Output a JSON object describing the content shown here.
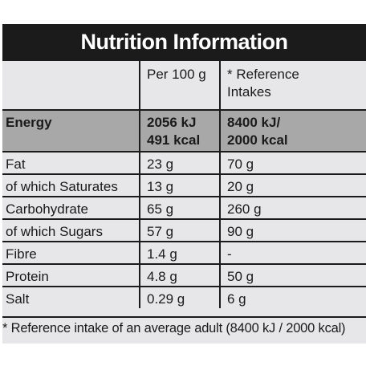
{
  "title": "Nutrition Information",
  "header": {
    "col1": "",
    "col2": "Per 100 g",
    "col3_line1": "* Reference",
    "col3_line2": "Intakes"
  },
  "energy": {
    "label": "Energy",
    "per100_line1": "2056 kJ",
    "per100_line2": "491 kcal",
    "ref_line1": "8400 kJ/",
    "ref_line2": "2000 kcal"
  },
  "rows": [
    {
      "label": "Fat",
      "per100": "23 g",
      "ref": "70 g"
    },
    {
      "label": "of which Saturates",
      "per100": "13 g",
      "ref": "20 g"
    },
    {
      "label": "Carbohydrate",
      "per100": "65 g",
      "ref": "260 g"
    },
    {
      "label": "of which Sugars",
      "per100": "57 g",
      "ref": "90 g"
    },
    {
      "label": "Fibre",
      "per100": "1.4 g",
      "ref": "-"
    },
    {
      "label": "Protein",
      "per100": "4.8 g",
      "ref": "50 g"
    },
    {
      "label": "Salt",
      "per100": "0.29 g",
      "ref": "6 g"
    }
  ],
  "footnote": "* Reference intake of an average adult (8400 kJ / 2000 kcal)",
  "colors": {
    "title_bg": "#1b1b1b",
    "panel_bg": "#e7e7e9",
    "energy_bg": "#a8a8a8"
  }
}
